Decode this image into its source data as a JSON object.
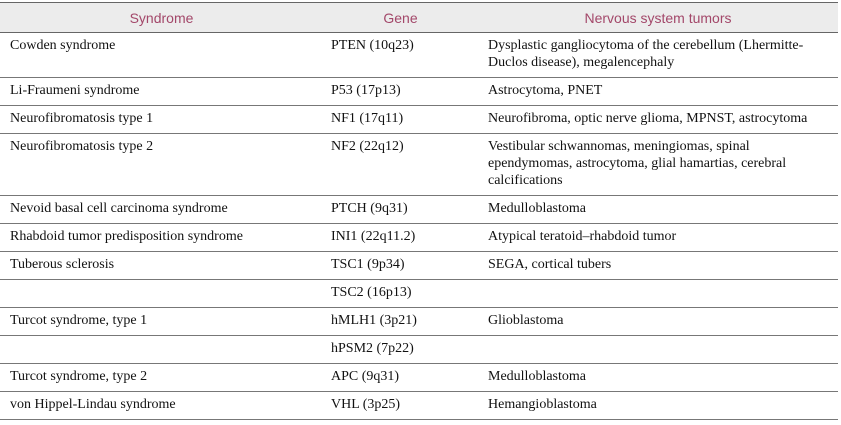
{
  "table": {
    "headers": [
      "Syndrome",
      "Gene",
      "Nervous system tumors"
    ],
    "rows": [
      [
        "Cowden syndrome",
        "PTEN (10q23)",
        "Dysplastic gangliocytoma of the cerebellum (Lhermitte-Duclos disease), megalencephaly"
      ],
      [
        "Li-Fraumeni syndrome",
        "P53 (17p13)",
        "Astrocytoma, PNET"
      ],
      [
        "Neurofibromatosis type 1",
        "NF1 (17q11)",
        "Neurofibroma, optic nerve glioma, MPNST, astrocytoma"
      ],
      [
        "Neurofibromatosis type 2",
        "NF2 (22q12)",
        "Vestibular schwannomas, meningiomas, spinal ependymomas, astrocytoma, glial hamartias, cerebral calcifications"
      ],
      [
        "Nevoid basal cell carcinoma syndrome",
        "PTCH (9q31)",
        "Medulloblastoma"
      ],
      [
        "Rhabdoid tumor predisposition syndrome",
        "INI1 (22q11.2)",
        "Atypical teratoid–rhabdoid tumor"
      ],
      [
        "Tuberous sclerosis",
        "TSC1 (9p34)",
        "SEGA, cortical tubers"
      ],
      [
        null,
        "TSC2 (16p13)",
        null
      ],
      [
        "Turcot syndrome, type 1",
        "hMLH1 (3p21)",
        "Glioblastoma"
      ],
      [
        null,
        "hPSM2 (7p22)",
        null
      ],
      [
        "Turcot syndrome, type 2",
        "APC (9q31)",
        "Medulloblastoma"
      ],
      [
        "von Hippel-Lindau syndrome",
        "VHL (3p25)",
        "Hemangioblastoma"
      ]
    ]
  }
}
